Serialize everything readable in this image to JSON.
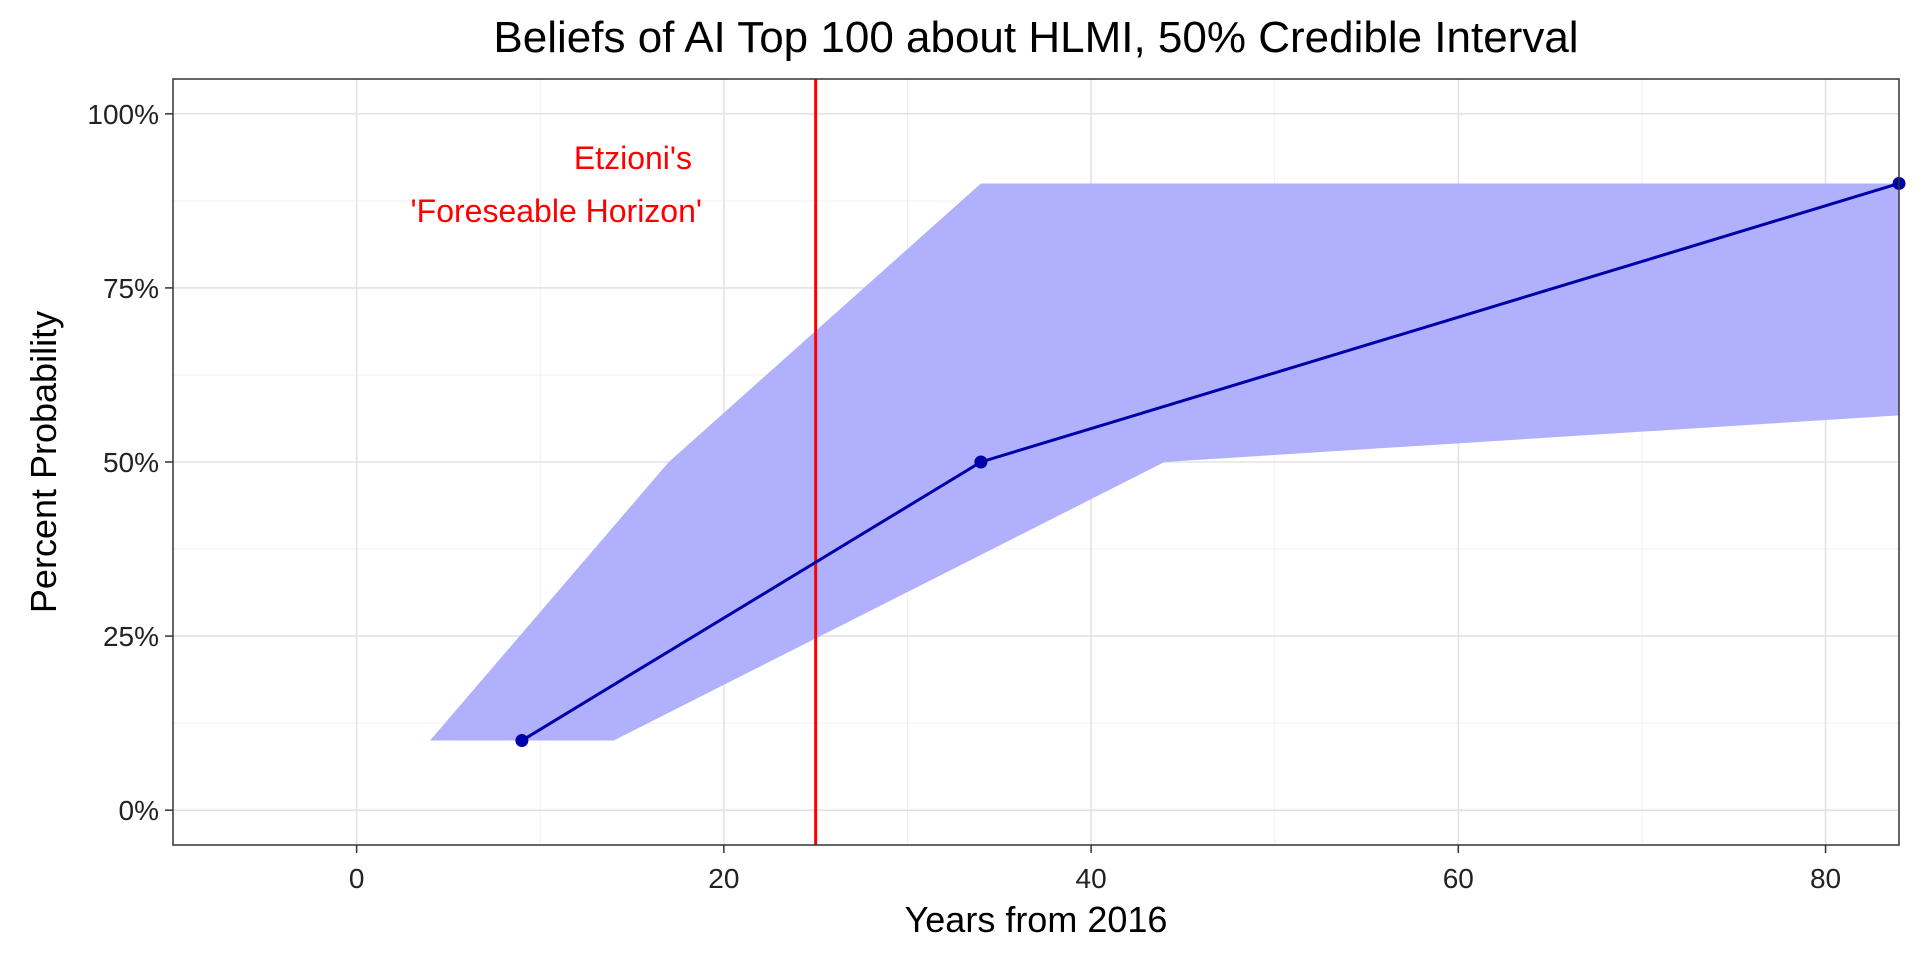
{
  "chart_data": {
    "type": "line",
    "title": "Beliefs of AI Top 100 about HLMI, 50% Credible Interval",
    "xlabel": "Years from 2016",
    "ylabel": "Percent Probability",
    "xlim": [
      -10,
      84
    ],
    "ylim": [
      -5,
      105
    ],
    "x_ticks": [
      0,
      20,
      40,
      60,
      80
    ],
    "x_tick_labels": [
      "0",
      "20",
      "40",
      "60",
      "80"
    ],
    "y_ticks": [
      0,
      25,
      50,
      75,
      100
    ],
    "y_tick_labels": [
      "0%",
      "25%",
      "50%",
      "75%",
      "100%"
    ],
    "x_minor_ticks": [
      10,
      30,
      50,
      70
    ],
    "y_minor_ticks": [
      12.5,
      37.5,
      62.5,
      87.5
    ],
    "grid": true,
    "series": [
      {
        "x": [
          9,
          34,
          84
        ],
        "y": [
          10,
          50,
          90
        ],
        "color": "#0000aa"
      }
    ],
    "ribbon": {
      "color": "#b0b0fc",
      "lower": [
        [
          4,
          10
        ],
        [
          14,
          10
        ],
        [
          44,
          50
        ],
        [
          84,
          56.7
        ]
      ],
      "upper": [
        [
          4,
          10
        ],
        [
          17,
          50
        ],
        [
          34,
          90
        ],
        [
          84,
          90
        ]
      ]
    },
    "vline": {
      "x": 25,
      "color": "#ff0000"
    },
    "annotation": {
      "lines": [
        "Etzioni's",
        "'Foreseable Horizon'"
      ],
      "color": "#ff0000"
    }
  }
}
